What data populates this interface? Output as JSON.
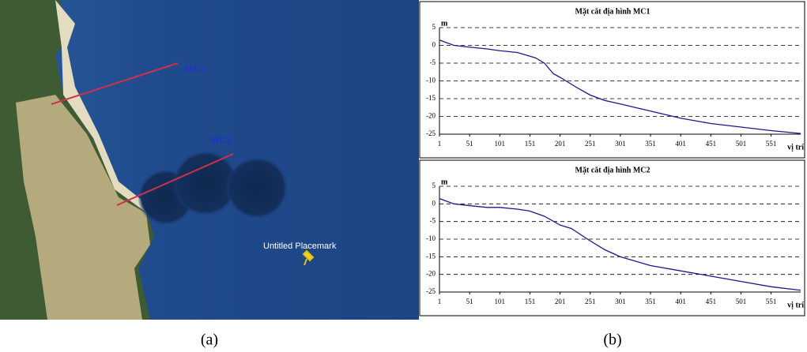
{
  "map": {
    "labels": [
      "MC1",
      "MC2"
    ],
    "placemark": "Untitled Placemark"
  },
  "captions": [
    "(a)",
    "(b)"
  ],
  "chart_data": [
    {
      "type": "line",
      "title": "Mặt cắt địa hình MC1",
      "y_label": "m",
      "x_label": "vị trí",
      "x": [
        1,
        25,
        51,
        80,
        101,
        130,
        160,
        175,
        190,
        201,
        230,
        251,
        275,
        301,
        351,
        401,
        451,
        501,
        551,
        600
      ],
      "values": [
        1.5,
        0,
        -0.5,
        -1,
        -1.5,
        -2,
        -3.5,
        -5,
        -8,
        -9,
        -12,
        -14,
        -15.5,
        -16.5,
        -18.5,
        -20.5,
        -22,
        -23,
        -24,
        -24.8
      ],
      "color": "#1a1a8c",
      "xlim": [
        1,
        600
      ],
      "xticks": [
        1,
        51,
        101,
        151,
        201,
        251,
        301,
        351,
        401,
        451,
        501,
        551
      ],
      "ylim": [
        -25,
        5
      ],
      "yticks": [
        5,
        0,
        -5,
        -10,
        -15,
        -20,
        -25
      ],
      "grid": true
    },
    {
      "type": "line",
      "title": "Mặt cắt địa hình MC2",
      "y_label": "m",
      "x_label": "vị trí",
      "x": [
        1,
        25,
        51,
        80,
        101,
        130,
        150,
        175,
        201,
        220,
        251,
        275,
        301,
        351,
        401,
        451,
        501,
        551,
        600
      ],
      "values": [
        1.5,
        0,
        -0.5,
        -1,
        -1,
        -1.5,
        -2,
        -3.5,
        -6,
        -7,
        -10.5,
        -13,
        -15,
        -17.5,
        -19,
        -20.5,
        -22,
        -23.5,
        -24.5
      ],
      "color": "#1a1a8c",
      "xlim": [
        1,
        600
      ],
      "xticks": [
        1,
        51,
        101,
        151,
        201,
        251,
        301,
        351,
        401,
        451,
        501,
        551
      ],
      "ylim": [
        -25,
        5
      ],
      "yticks": [
        5,
        0,
        -5,
        -10,
        -15,
        -20,
        -25
      ],
      "grid": true
    }
  ]
}
